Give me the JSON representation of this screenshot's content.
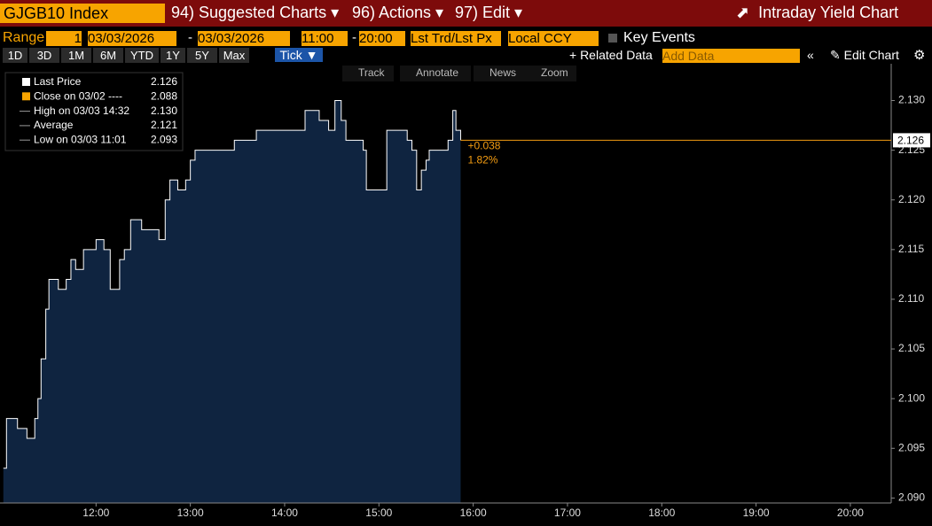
{
  "toolbar": {
    "ticker": "GJGB10 Index",
    "menus": [
      "94) Suggested Charts ▾",
      "96) Actions ▾",
      "97) Edit ▾"
    ],
    "chart_title": "Intraday Yield Chart",
    "range_label": "Range",
    "range_value": "1",
    "start_date": "03/03/2026",
    "dash": "-",
    "end_date": "03/03/2026",
    "start_time": "11:00",
    "end_time": "20:00",
    "price_field": "Lst Trd/Lst Px",
    "currency": "Local CCY",
    "key_events": "Key Events",
    "periods": [
      "1D",
      "3D",
      "1M",
      "6M",
      "YTD",
      "1Y",
      "5Y",
      "Max"
    ],
    "frequency": "Tick ▼",
    "related": "+ Related Data",
    "add_data": "Add Data",
    "edit_chart": "Edit Chart",
    "chart_tools": [
      "Track",
      "Annotate",
      "News",
      "Zoom"
    ]
  },
  "chart_data": {
    "type": "line",
    "x": [
      "11:01",
      "11:03",
      "11:10",
      "11:16",
      "11:21",
      "11:23",
      "11:25",
      "11:28",
      "11:30",
      "11:36",
      "11:41",
      "11:44",
      "11:47",
      "11:52",
      "12:00",
      "12:05",
      "12:09",
      "12:15",
      "12:18",
      "12:22",
      "12:29",
      "12:40",
      "12:44",
      "12:47",
      "12:52",
      "12:57",
      "13:00",
      "13:03",
      "13:28",
      "13:42",
      "14:13",
      "14:16",
      "14:22",
      "14:28",
      "14:32",
      "14:36",
      "14:39",
      "14:50",
      "14:52",
      "15:05",
      "15:18",
      "15:21",
      "15:24",
      "15:27",
      "15:30",
      "15:32",
      "15:44",
      "15:47",
      "15:49",
      "15:52"
    ],
    "series": [
      {
        "name": "Last Price",
        "color": "#ffffff",
        "fill": "#0f2440",
        "values": [
          2.093,
          2.098,
          2.097,
          2.096,
          2.098,
          2.1,
          2.104,
          2.109,
          2.112,
          2.111,
          2.112,
          2.114,
          2.113,
          2.115,
          2.116,
          2.115,
          2.111,
          2.114,
          2.115,
          2.118,
          2.117,
          2.116,
          2.12,
          2.122,
          2.121,
          2.122,
          2.124,
          2.125,
          2.126,
          2.127,
          2.129,
          2.129,
          2.128,
          2.127,
          2.13,
          2.128,
          2.126,
          2.125,
          2.121,
          2.127,
          2.126,
          2.125,
          2.121,
          2.123,
          2.124,
          2.125,
          2.126,
          2.129,
          2.127,
          2.126
        ]
      }
    ],
    "legend": [
      {
        "label": "Last Price",
        "value": 2.126
      },
      {
        "label": "Close on 03/02 ----",
        "value": 2.088
      },
      {
        "label": "High on 03/03 14:32",
        "value": {
          "value": 2.13,
          "label": "2.130"
        }
      },
      {
        "label": "Average",
        "value": 2.121
      },
      {
        "label": "Low on 03/03 11:01",
        "value": 2.093
      }
    ],
    "last_price": 2.126,
    "last_price_color": "#f39c12",
    "change": {
      "value": 0.038,
      "label": "+0.038"
    },
    "change_pct": {
      "value": 1.82,
      "label": "1.82%"
    },
    "xlim": [
      "11:00",
      "20:26"
    ],
    "xticks": [
      "12:00",
      "13:00",
      "14:00",
      "15:00",
      "16:00",
      "17:00",
      "18:00",
      "19:00",
      "20:00"
    ],
    "ylim": [
      2.0895,
      2.1337
    ],
    "yticks": [
      {
        "value": 2.09,
        "label": "2.090"
      },
      2.095,
      {
        "value": 2.1,
        "label": "2.100"
      },
      2.105,
      {
        "value": 2.11,
        "label": "2.110"
      },
      2.115,
      {
        "value": 2.12,
        "label": "2.120"
      },
      2.125,
      {
        "value": 2.13,
        "label": "2.130"
      }
    ]
  }
}
